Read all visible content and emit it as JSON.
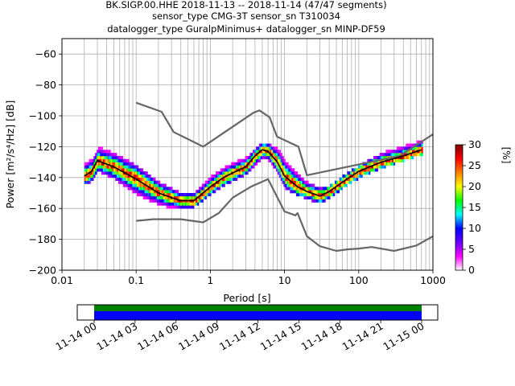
{
  "chart_data": [
    {
      "type": "heatmap",
      "title_lines": [
        "BK.SIGP.00.HHE   2018-11-13 -- 2018-11-14  (47/47 segments)",
        "sensor_type CMG-3T sensor_sn T310034",
        "datalogger_type GuralpMinimus+ datalogger_sn MINP-DF59"
      ],
      "xlabel": "Period [s]",
      "ylabel": "Power [m²/s⁴/Hz] [dB]",
      "x_scale": "log",
      "xlim": [
        0.01,
        1000
      ],
      "ylim": [
        -200,
        -50
      ],
      "x_ticks": [
        {
          "v": 0.01,
          "label": "0.01"
        },
        {
          "v": 0.1,
          "label": "0.1"
        },
        {
          "v": 1,
          "label": "1"
        },
        {
          "v": 10,
          "label": "10"
        },
        {
          "v": 100,
          "label": "100"
        },
        {
          "v": 1000,
          "label": "1000"
        }
      ],
      "y_ticks": [
        {
          "v": -60,
          "label": "−60"
        },
        {
          "v": -80,
          "label": "−80"
        },
        {
          "v": -100,
          "label": "−100"
        },
        {
          "v": -120,
          "label": "−120"
        },
        {
          "v": -140,
          "label": "−140"
        },
        {
          "v": -160,
          "label": "−160"
        },
        {
          "v": -180,
          "label": "−180"
        },
        {
          "v": -200,
          "label": "−200"
        }
      ],
      "grid": true,
      "colorbar": {
        "label": "[%]",
        "ticks": [
          {
            "v": 0,
            "label": "0"
          },
          {
            "v": 5,
            "label": "5"
          },
          {
            "v": 10,
            "label": "10"
          },
          {
            "v": 15,
            "label": "15"
          },
          {
            "v": 20,
            "label": "20"
          },
          {
            "v": 25,
            "label": "25"
          },
          {
            "v": 30,
            "label": "30"
          }
        ],
        "range": [
          0,
          30
        ],
        "stops": [
          "#ffffff",
          "#ff00ff",
          "#6600ff",
          "#0000ff",
          "#00ffff",
          "#00ff00",
          "#ffff00",
          "#ff8000",
          "#ff0000",
          "#800000"
        ]
      },
      "noise_models": [
        {
          "x": [
            0.1,
            0.17,
            0.4,
            0.8,
            1.3,
            2,
            3.5,
            6,
            10,
            14,
            15,
            20,
            30,
            50,
            70,
            100,
            150,
            300,
            600,
            1000
          ],
          "y": [
            -168,
            -167,
            -167,
            -169,
            -163,
            -153,
            -146,
            -141,
            -162,
            -164.5,
            -163,
            -178,
            -184.5,
            -187.5,
            -186.5,
            -186,
            -185,
            -187.5,
            -184,
            -178
          ]
        },
        {
          "x": [
            0.1,
            0.22,
            0.32,
            0.8,
            3.8,
            4.6,
            6.3,
            7.9,
            15.4,
            20,
            354,
            1000
          ],
          "y": [
            -91.5,
            -97.4,
            -110.5,
            -120,
            -98,
            -96.5,
            -101,
            -113.5,
            -120,
            -138.5,
            -126,
            -112
          ]
        }
      ],
      "mean_line": {
        "x": [
          0.02,
          0.025,
          0.03,
          0.05,
          0.1,
          0.2,
          0.3,
          0.4,
          0.6,
          1,
          1.5,
          2,
          3,
          4,
          5,
          6,
          8,
          10,
          15,
          20,
          30,
          40,
          60,
          100,
          200,
          400,
          700
        ],
        "y": [
          -139,
          -136,
          -129,
          -133,
          -141,
          -150,
          -153,
          -155,
          -155,
          -146,
          -140,
          -137,
          -133,
          -126,
          -122,
          -123,
          -130,
          -139,
          -146,
          -149,
          -152,
          -149,
          -143,
          -136,
          -130,
          -126,
          -122
        ]
      },
      "ppsd_envelope": {
        "x": [
          0.02,
          0.025,
          0.03,
          0.05,
          0.1,
          0.2,
          0.3,
          0.4,
          0.6,
          1,
          1.5,
          2,
          3,
          4,
          5,
          6,
          8,
          10,
          15,
          20,
          30,
          40,
          60,
          100,
          200,
          400,
          700
        ],
        "low": [
          -144,
          -141,
          -135,
          -140,
          -150,
          -157,
          -159,
          -159,
          -158,
          -150,
          -144,
          -141,
          -137,
          -131,
          -127,
          -128,
          -136,
          -146,
          -151,
          -153,
          -156,
          -152,
          -146,
          -139,
          -133,
          -128,
          -124
        ],
        "high": [
          -131,
          -128,
          -121,
          -125,
          -133,
          -144,
          -148,
          -151,
          -151,
          -139,
          -133,
          -130,
          -127,
          -122,
          -118,
          -119,
          -122,
          -130,
          -137,
          -144,
          -148,
          -146,
          -140,
          -133,
          -125,
          -117,
          -116
        ]
      }
    },
    {
      "type": "timeline",
      "tick_labels": [
        "11-14 00",
        "11-14 03",
        "11-14 06",
        "11-14 09",
        "11-14 12",
        "11-14 15",
        "11-14 18",
        "11-14 21",
        "11-15 00"
      ],
      "colors": {
        "data_available": "#008000",
        "ppsd_used": "#0000ff"
      }
    }
  ]
}
